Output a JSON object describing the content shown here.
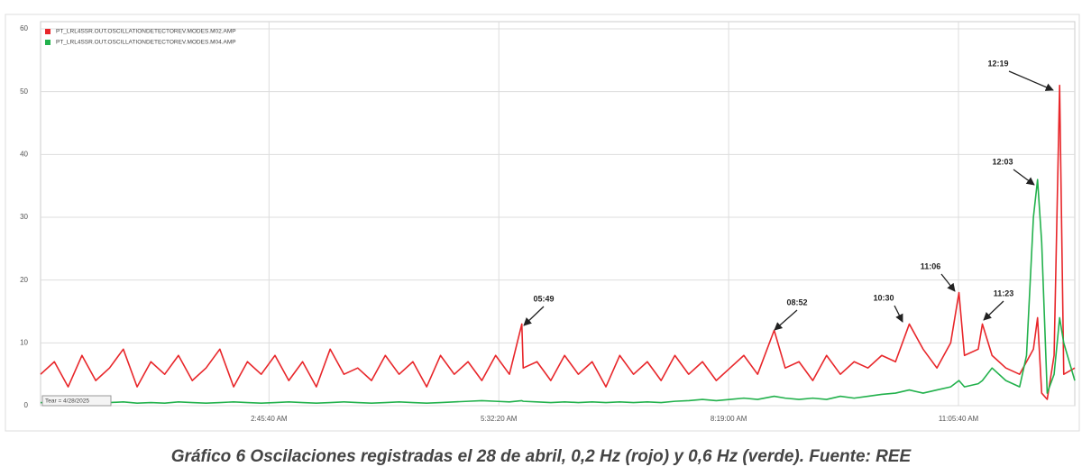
{
  "chart_data": {
    "type": "line",
    "caption": "Gráfico 6 Oscilaciones registradas el 28 de abril, 0,2 Hz (rojo) y 0,6 Hz (verde). Fuente: REE",
    "time_label": "Tear = 4/28/2025",
    "x": [
      0,
      600,
      1200,
      1800,
      2400,
      3000,
      3600,
      4200,
      4800,
      5400,
      6000,
      6600,
      7200,
      7800,
      8400,
      9000,
      9600,
      10200,
      10800,
      11400,
      12000,
      12600,
      13200,
      13800,
      14400,
      15000,
      15600,
      16200,
      16800,
      17400,
      18000,
      18600,
      19200,
      19800,
      20400,
      20940,
      21000,
      21600,
      22200,
      22800,
      23400,
      24000,
      24600,
      25200,
      25800,
      26400,
      27000,
      27600,
      28200,
      28800,
      29400,
      30000,
      30600,
      31200,
      31920,
      32400,
      33000,
      33600,
      34200,
      34800,
      35400,
      36000,
      36600,
      37200,
      37800,
      38400,
      39000,
      39600,
      39960,
      40200,
      40800,
      40980,
      41400,
      42000,
      42600,
      42900,
      43200,
      43380,
      43560,
      43800,
      44100,
      44340,
      44520,
      45000
    ],
    "series": [
      {
        "name": "PT_LRL4SSR.OUT.OSCILLATIONDETECTOREV.MODES.M02.AMP",
        "color": "#e8262a",
        "values": [
          5,
          7,
          3,
          8,
          4,
          6,
          9,
          3,
          7,
          5,
          8,
          4,
          6,
          9,
          3,
          7,
          5,
          8,
          4,
          7,
          3,
          9,
          5,
          6,
          4,
          8,
          5,
          7,
          3,
          8,
          5,
          7,
          4,
          8,
          5,
          13,
          6,
          7,
          4,
          8,
          5,
          7,
          3,
          8,
          5,
          7,
          4,
          8,
          5,
          7,
          4,
          6,
          8,
          5,
          12,
          6,
          7,
          4,
          8,
          5,
          7,
          6,
          8,
          7,
          13,
          9,
          6,
          10,
          18,
          8,
          9,
          13,
          8,
          6,
          5,
          7,
          9,
          14,
          2,
          1,
          8,
          51,
          5,
          6
        ]
      },
      {
        "name": "PT_LRL4SSR.OUT.OSCILLATIONDETECTOREV.MODES.M04.AMP",
        "color": "#22b14c",
        "values": [
          0.5,
          0.4,
          0.6,
          0.5,
          0.4,
          0.5,
          0.6,
          0.4,
          0.5,
          0.4,
          0.6,
          0.5,
          0.4,
          0.5,
          0.6,
          0.5,
          0.4,
          0.5,
          0.6,
          0.5,
          0.4,
          0.5,
          0.6,
          0.5,
          0.4,
          0.5,
          0.6,
          0.5,
          0.4,
          0.5,
          0.6,
          0.7,
          0.8,
          0.7,
          0.6,
          0.8,
          0.7,
          0.6,
          0.5,
          0.6,
          0.5,
          0.6,
          0.5,
          0.6,
          0.5,
          0.6,
          0.5,
          0.7,
          0.8,
          1,
          0.8,
          1,
          1.2,
          1,
          1.5,
          1.2,
          1,
          1.2,
          1,
          1.5,
          1.2,
          1.5,
          1.8,
          2,
          2.5,
          2,
          2.5,
          3,
          4,
          3,
          3.5,
          4,
          6,
          4,
          3,
          8,
          30,
          36,
          26,
          2,
          5,
          14,
          10,
          4
        ]
      }
    ],
    "annotations": [
      "05:49",
      "08:52",
      "10:30",
      "11:06",
      "11:23",
      "12:03",
      "12:19"
    ],
    "xlim": [
      0,
      45000
    ],
    "xticks": [
      {
        "value": 9940,
        "label": "2:45:40 AM"
      },
      {
        "value": 19940,
        "label": "5:32:20 AM"
      },
      {
        "value": 29940,
        "label": "8:19:00 AM"
      },
      {
        "value": 39940,
        "label": "11:05:40 AM"
      }
    ],
    "ylim": [
      0,
      60
    ],
    "yticks": [
      0,
      10,
      20,
      30,
      40,
      50,
      60
    ],
    "grid": true,
    "legend": "top-left"
  }
}
